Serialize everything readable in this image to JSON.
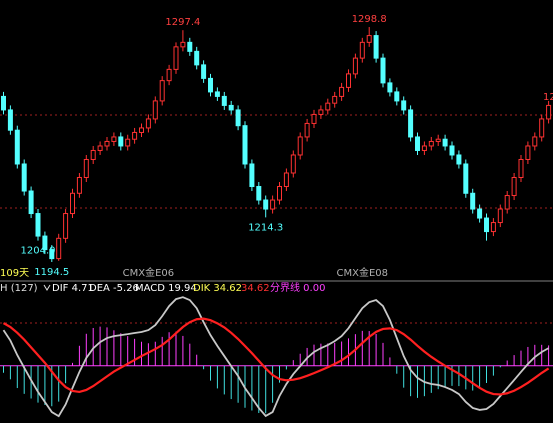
{
  "chart_data": [
    {
      "type": "candlestick",
      "period_label": "109天",
      "edge_label": "12",
      "categories": [
        null,
        null,
        null,
        null,
        null,
        null,
        null,
        null,
        null,
        null,
        null,
        null,
        null,
        null,
        null,
        null,
        null,
        null,
        null,
        null,
        null,
        "CMX金E06",
        null,
        null,
        null,
        null,
        null,
        null,
        null,
        null,
        null,
        null,
        null,
        null,
        null,
        null,
        null,
        null,
        null,
        null,
        null,
        null,
        null,
        null,
        null,
        null,
        null,
        null,
        null,
        null,
        null,
        null,
        "CMX金E08",
        null,
        null,
        null,
        null,
        null,
        null,
        null,
        null,
        null,
        null,
        null,
        null,
        null,
        null,
        null,
        null,
        null,
        null,
        null,
        null,
        null,
        null,
        null,
        null,
        null,
        null,
        null
      ],
      "open": [
        1268,
        1262,
        1253,
        1238,
        1226,
        1216,
        1206,
        1200,
        1196,
        1205,
        1216,
        1225,
        1232,
        1240,
        1244,
        1246,
        1248,
        1250,
        1246,
        1249,
        1252,
        1254,
        1258,
        1266,
        1275,
        1280,
        1290,
        1292,
        1288,
        1282,
        1276,
        1270,
        1268,
        1264,
        1262,
        1255,
        1238,
        1228,
        1222,
        1218,
        1222,
        1228,
        1234,
        1242,
        1250,
        1256,
        1260,
        1262,
        1265,
        1268,
        1272,
        1278,
        1285,
        1292,
        1295,
        1285,
        1274,
        1270,
        1266,
        1262,
        1250,
        1244,
        1246,
        1248,
        1249,
        1246,
        1242,
        1238,
        1225,
        1218,
        1214,
        1208,
        1212,
        1218,
        1224,
        1232,
        1240,
        1246,
        1250,
        1258
      ],
      "high": [
        1270,
        1264,
        1255,
        1240,
        1228,
        1218,
        1208,
        1202,
        1207,
        1218,
        1227,
        1234,
        1242,
        1246,
        1248,
        1250,
        1252,
        1252,
        1251,
        1254,
        1256,
        1260,
        1268,
        1277,
        1282,
        1292,
        1297.4,
        1294,
        1290,
        1284,
        1278,
        1272,
        1270,
        1266,
        1264,
        1257,
        1240,
        1230,
        1224,
        1224,
        1230,
        1236,
        1244,
        1252,
        1258,
        1262,
        1264,
        1267,
        1270,
        1274,
        1280,
        1287,
        1294,
        1298.8,
        1297,
        1287,
        1276,
        1272,
        1268,
        1264,
        1252,
        1248,
        1250,
        1251,
        1251,
        1248,
        1244,
        1240,
        1227,
        1220,
        1216,
        1214,
        1220,
        1226,
        1234,
        1242,
        1248,
        1252,
        1260,
        1266
      ],
      "low": [
        1260,
        1251,
        1236,
        1224,
        1214,
        1204,
        1198,
        1194.5,
        1195,
        1203,
        1214,
        1223,
        1230,
        1238,
        1242,
        1244,
        1246,
        1244,
        1244,
        1247,
        1250,
        1252,
        1256,
        1264,
        1273,
        1278,
        1288,
        1286,
        1280,
        1274,
        1268,
        1266,
        1262,
        1260,
        1253,
        1236,
        1226,
        1220,
        1214.3,
        1216,
        1220,
        1226,
        1232,
        1240,
        1248,
        1254,
        1258,
        1260,
        1263,
        1266,
        1270,
        1276,
        1283,
        1290,
        1283,
        1272,
        1268,
        1264,
        1260,
        1248,
        1242,
        1242,
        1244,
        1246,
        1244,
        1240,
        1236,
        1223,
        1216,
        1212,
        1204,
        1206,
        1210,
        1216,
        1222,
        1230,
        1238,
        1244,
        1248,
        1256
      ],
      "close": [
        1262,
        1253,
        1238,
        1226,
        1216,
        1206,
        1200,
        1196,
        1205,
        1216,
        1225,
        1232,
        1240,
        1244,
        1246,
        1248,
        1250,
        1246,
        1249,
        1252,
        1254,
        1258,
        1266,
        1275,
        1280,
        1290,
        1292,
        1288,
        1282,
        1276,
        1270,
        1268,
        1264,
        1262,
        1255,
        1238,
        1228,
        1222,
        1218,
        1222,
        1228,
        1234,
        1242,
        1250,
        1256,
        1260,
        1262,
        1265,
        1268,
        1272,
        1278,
        1285,
        1292,
        1295,
        1285,
        1274,
        1270,
        1266,
        1262,
        1250,
        1244,
        1246,
        1248,
        1249,
        1246,
        1242,
        1238,
        1225,
        1218,
        1214,
        1208,
        1212,
        1218,
        1224,
        1232,
        1240,
        1246,
        1250,
        1258,
        1264
      ],
      "up_color": "#ff3232",
      "down_color": "#54ffff",
      "ylim": [
        1186.5,
        1310.8
      ],
      "annotations": [
        {
          "text": "1194.5",
          "value": 1194.5,
          "color": "#54ffff"
        },
        {
          "text": "1297.4",
          "value": 1297.4,
          "color": "#ff4040"
        },
        {
          "text": "1214.3",
          "value": 1214.3,
          "color": "#54ffff"
        },
        {
          "text": "1298.8",
          "value": 1298.8,
          "color": "#ff4040"
        },
        {
          "text": "1204.0",
          "value": 1204,
          "color": "#54ffff"
        }
      ]
    },
    {
      "type": "macd",
      "header": [
        "H (127)",
        "DIF 4.71",
        "DEA -5.26",
        "MACD 19.94",
        "DIK 34.62",
        "34.62",
        "分界线 0.00"
      ],
      "header_colors": [
        "#e0e0e0",
        "#ffffff",
        "#ffffff",
        "#ffffff",
        "#ffff54",
        "#ff3232",
        "#ff40ff"
      ],
      "series": [
        {
          "color": "#c8c8c8",
          "values": [
            18.4,
            13,
            5.5,
            -1,
            -7.4,
            -13.5,
            -18.7,
            -23.9,
            -26,
            -20,
            -11.5,
            -3.2,
            4,
            9,
            12.2,
            14.3,
            15.3,
            15.8,
            16.3,
            16.9,
            17.4,
            18.4,
            21,
            25.6,
            30.8,
            34.4,
            35.4,
            33.9,
            29.7,
            22.5,
            15.8,
            10.2,
            5,
            -0.2,
            -5.3,
            -11.5,
            -16.6,
            -21.8,
            -25.9,
            -23.9,
            -15.6,
            -9.4,
            -4.3,
            -0.2,
            4,
            7.1,
            9.1,
            10.7,
            12.7,
            15.3,
            19.4,
            24.6,
            29.7,
            32.8,
            33.9,
            30.8,
            23.6,
            14.3,
            5,
            -2.2,
            -6.3,
            -8.4,
            -9.4,
            -9.9,
            -11,
            -12.5,
            -14.6,
            -18.7,
            -21.8,
            -22.8,
            -22.3,
            -19.7,
            -15.6,
            -11.5,
            -7.4,
            -3.2,
            0.9,
            4.5,
            7.1,
            9.1
          ]
        },
        {
          "color": "#ff2020",
          "values": [
            22,
            20,
            17,
            13.5,
            9.5,
            5.5,
            1.5,
            -3,
            -7.5,
            -11,
            -13,
            -13.5,
            -12.5,
            -10.5,
            -8,
            -5.5,
            -3,
            -1,
            1,
            3,
            5,
            6.8,
            8.6,
            10.7,
            13.5,
            16.8,
            20,
            22.5,
            24,
            24.3,
            23.5,
            21.9,
            19.8,
            17,
            13.8,
            10.2,
            6.5,
            2.6,
            -1.4,
            -4.8,
            -6.9,
            -7.5,
            -7.2,
            -6.4,
            -5.2,
            -3.8,
            -2.3,
            -0.8,
            0.9,
            2.8,
            5.3,
            8.3,
            11.7,
            14.9,
            17.5,
            19,
            19.3,
            18.4,
            16.3,
            13.5,
            10.3,
            7.3,
            4.6,
            2.2,
            0,
            -2.1,
            -4.1,
            -6.5,
            -9,
            -11.4,
            -13.4,
            -14.6,
            -14.8,
            -14.2,
            -12.9,
            -11,
            -8.8,
            -6.3,
            -3.7,
            -1.4
          ]
        }
      ],
      "histogram": [
        -3.6,
        -7,
        -11.5,
        -14.5,
        -16.9,
        -19,
        -20.2,
        -20.9,
        -18.5,
        -9,
        1.5,
        10.3,
        16.5,
        19.5,
        20.2,
        19.8,
        18.3,
        16.8,
        15.3,
        13.9,
        12.4,
        11.6,
        12.4,
        14.9,
        17.3,
        17.6,
        15.4,
        11.4,
        5.7,
        -1.8,
        -7.7,
        -11.7,
        -14.8,
        -17.2,
        -19.1,
        -21.7,
        -23.1,
        -24.4,
        -24.5,
        -19.1,
        -8.7,
        -1.9,
        2.9,
        6.2,
        9.2,
        10.9,
        11.4,
        11.5,
        11.8,
        12.5,
        14.1,
        16.3,
        18,
        17.9,
        16.4,
        11.8,
        4.3,
        -4.1,
        -11.3,
        -15.7,
        -16.6,
        -15.7,
        -14,
        -12.1,
        -11,
        -10.4,
        -10.5,
        -12.2,
        -12.8,
        -11.4,
        -8.9,
        -5.1,
        -0.8,
        2.7,
        5.5,
        7.8,
        9.7,
        10.8,
        10.8,
        10.5
      ],
      "hist_up_color": "#ff40ff",
      "hist_down_color": "#40e0e0",
      "zero_color": "#ff40ff",
      "ylim": [
        -28,
        36
      ]
    }
  ]
}
